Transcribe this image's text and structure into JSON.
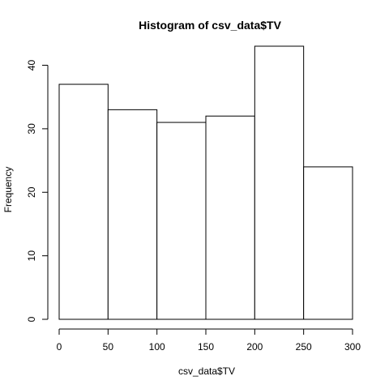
{
  "chart_data": {
    "type": "bar",
    "title": "Histogram of csv_data$TV",
    "xlabel": "csv_data$TV",
    "ylabel": "Frequency",
    "bins": [
      {
        "x0": 0,
        "x1": 50,
        "value": 37
      },
      {
        "x0": 50,
        "x1": 100,
        "value": 33
      },
      {
        "x0": 100,
        "x1": 150,
        "value": 31
      },
      {
        "x0": 150,
        "x1": 200,
        "value": 32
      },
      {
        "x0": 200,
        "x1": 250,
        "value": 43
      },
      {
        "x0": 250,
        "x1": 300,
        "value": 24
      }
    ],
    "xlim": [
      0,
      300
    ],
    "ylim": [
      0,
      43
    ],
    "x_ticks": [
      "0",
      "50",
      "100",
      "150",
      "200",
      "250",
      "300"
    ],
    "y_ticks": [
      "0",
      "10",
      "20",
      "30",
      "40"
    ],
    "colors": {
      "bar_fill": "#ffffff",
      "bar_stroke": "#000000",
      "axis": "#000000"
    },
    "grid": false
  }
}
